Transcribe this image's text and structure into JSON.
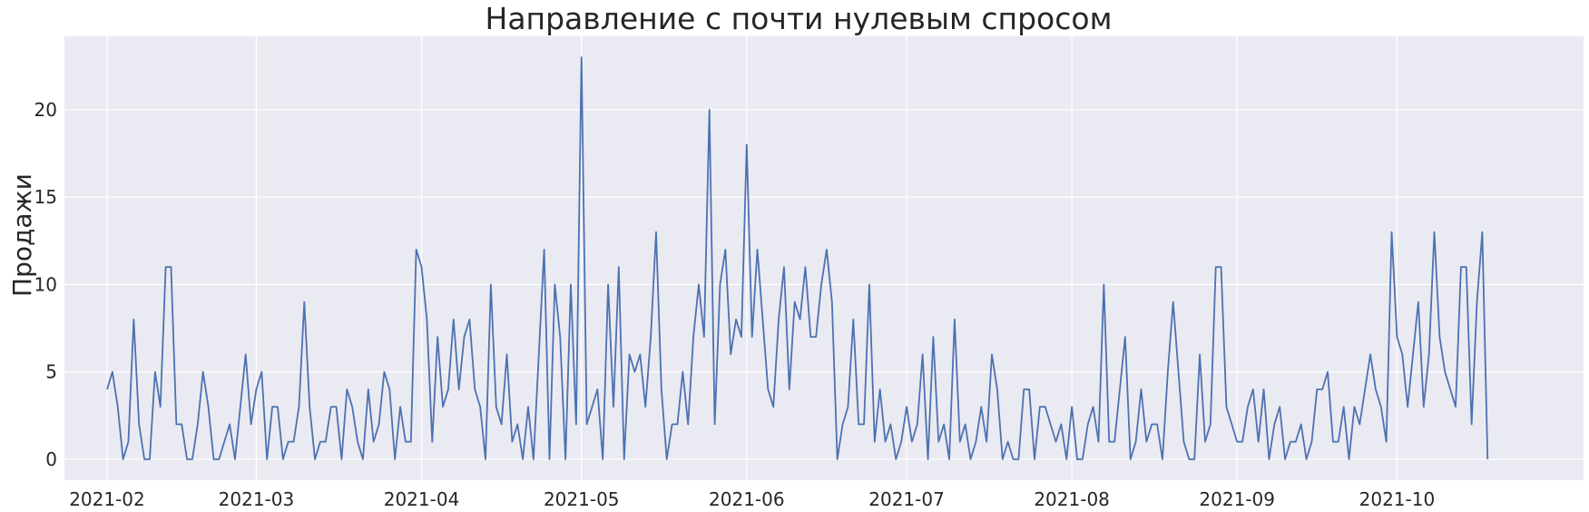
{
  "chart_data": {
    "type": "line",
    "title": "Направление с почти нулевым спросом",
    "xlabel": "",
    "ylabel": "Продажи",
    "x_start": "2021-02-01",
    "x_frequency": "daily",
    "xlim": [
      "2021-01-24",
      "2021-11-05"
    ],
    "ylim": [
      -1.2,
      24.2
    ],
    "grid": true,
    "x_ticks": [
      "2021-02",
      "2021-03",
      "2021-04",
      "2021-05",
      "2021-06",
      "2021-07",
      "2021-08",
      "2021-09",
      "2021-10"
    ],
    "y_ticks": [
      0,
      5,
      10,
      15,
      20
    ],
    "series": [
      {
        "name": "",
        "color": "#4c72b0",
        "values": [
          4,
          5,
          3,
          0,
          1,
          8,
          2,
          0,
          0,
          5,
          3,
          11,
          11,
          2,
          2,
          0,
          0,
          2,
          5,
          3,
          0,
          0,
          1,
          2,
          0,
          3,
          6,
          2,
          4,
          5,
          0,
          3,
          3,
          0,
          1,
          1,
          3,
          9,
          3,
          0,
          1,
          1,
          3,
          3,
          0,
          4,
          3,
          1,
          0,
          4,
          1,
          2,
          5,
          4,
          0,
          3,
          1,
          1,
          12,
          11,
          8,
          1,
          7,
          3,
          4,
          8,
          4,
          7,
          8,
          4,
          3,
          0,
          10,
          3,
          2,
          6,
          1,
          2,
          0,
          3,
          0,
          6,
          12,
          0,
          10,
          7,
          0,
          10,
          2,
          23,
          2,
          3,
          4,
          0,
          10,
          3,
          11,
          0,
          6,
          5,
          6,
          3,
          7,
          13,
          4,
          0,
          2,
          2,
          5,
          2,
          7,
          10,
          7,
          20,
          2,
          10,
          12,
          6,
          8,
          7,
          18,
          7,
          12,
          8,
          4,
          3,
          8,
          11,
          4,
          9,
          8,
          11,
          7,
          7,
          10,
          12,
          9,
          0,
          2,
          3,
          8,
          2,
          2,
          10,
          1,
          4,
          1,
          2,
          0,
          1,
          3,
          1,
          2,
          6,
          0,
          7,
          1,
          2,
          0,
          8,
          1,
          2,
          0,
          1,
          3,
          1,
          6,
          4,
          0,
          1,
          0,
          0,
          4,
          4,
          0,
          3,
          3,
          2,
          1,
          2,
          0,
          3,
          0,
          0,
          2,
          3,
          1,
          10,
          1,
          1,
          4,
          7,
          0,
          1,
          4,
          1,
          2,
          2,
          0,
          5,
          9,
          5,
          1,
          0,
          0,
          6,
          1,
          2,
          11,
          11,
          3,
          2,
          1,
          1,
          3,
          4,
          1,
          4,
          0,
          2,
          3,
          0,
          1,
          1,
          2,
          0,
          1,
          4,
          4,
          5,
          1,
          1,
          3,
          0,
          3,
          2,
          4,
          6,
          4,
          3,
          1,
          13,
          7,
          6,
          3,
          6,
          9,
          3,
          6,
          13,
          7,
          5,
          4,
          3,
          11,
          11,
          2,
          9,
          13,
          0
        ]
      }
    ]
  }
}
